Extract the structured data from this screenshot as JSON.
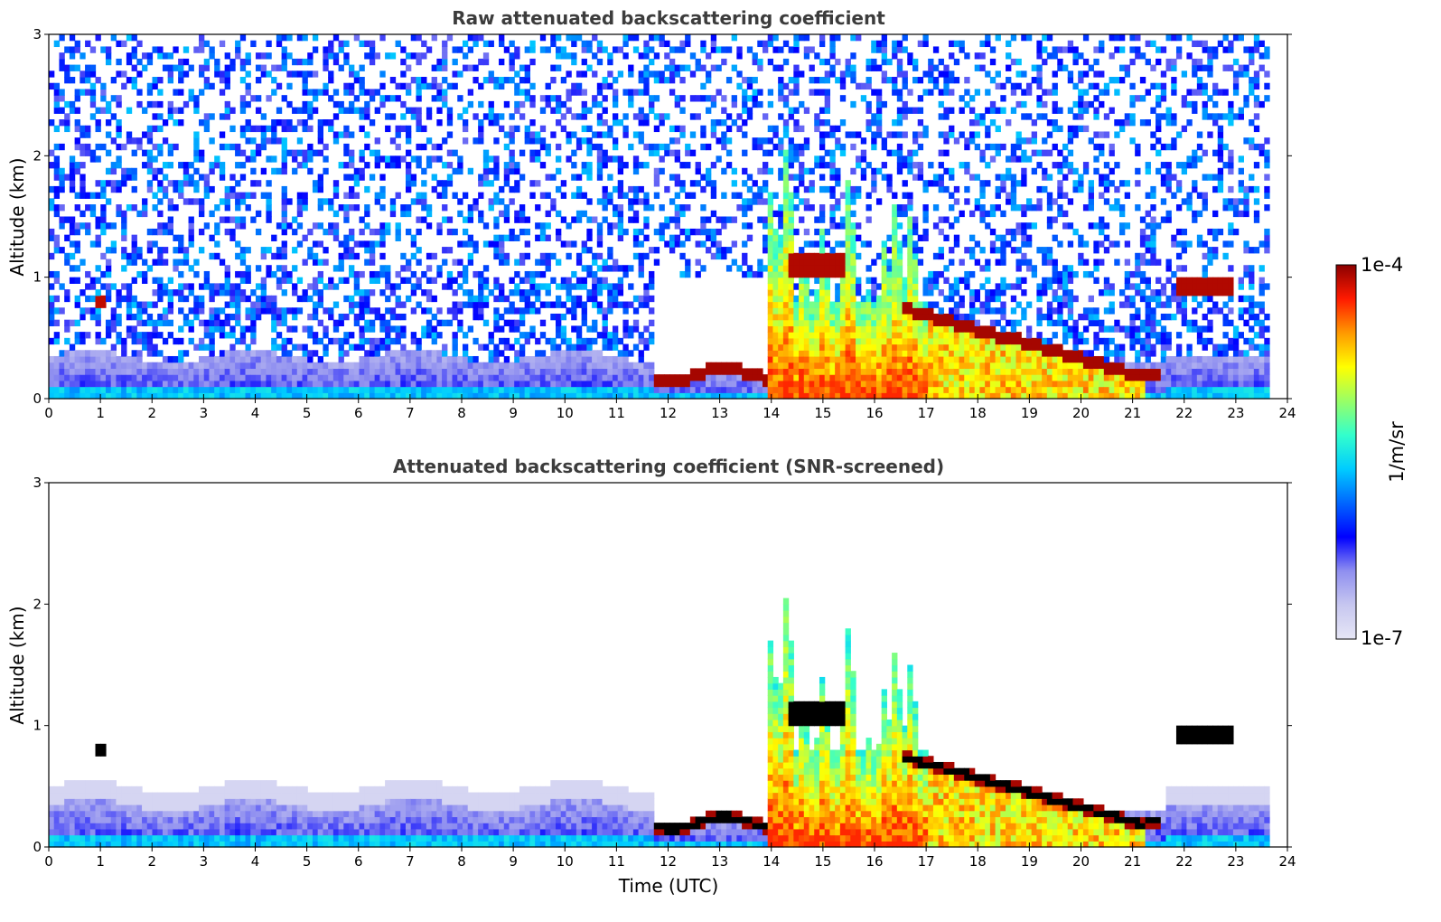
{
  "chart_data": [
    {
      "type": "heatmap",
      "title": "Raw attenuated backscattering coefficient",
      "xlabel": "",
      "ylabel": "Altitude (km)",
      "xlim": [
        0,
        24
      ],
      "ylim": [
        0,
        3
      ],
      "x_ticks": [
        "0",
        "1",
        "2",
        "3",
        "4",
        "5",
        "6",
        "7",
        "8",
        "9",
        "10",
        "11",
        "12",
        "13",
        "14",
        "15",
        "16",
        "17",
        "18",
        "19",
        "20",
        "21",
        "22",
        "23",
        "24"
      ],
      "y_ticks": [
        "0",
        "1",
        "2",
        "3"
      ],
      "data_extent_hours": [
        0,
        23.65
      ],
      "features": [
        {
          "feature": "stratiform cloud base layer",
          "time": [
            11.75,
            21.5
          ],
          "altitude_km": [
            0.15,
            0.3
          ]
        },
        {
          "feature": "elevated cloud layer",
          "time": [
            14.3,
            15.4
          ],
          "altitude_km": [
            1.0,
            1.2
          ]
        },
        {
          "feature": "descending cloud layer",
          "time": [
            16.5,
            21.2
          ],
          "altitude_km": [
            0.2,
            0.75
          ]
        },
        {
          "feature": "convective plumes",
          "time": [
            13.9,
            17.0
          ],
          "altitude_km": [
            0.0,
            2.2
          ]
        },
        {
          "feature": "isolated cloud",
          "time": [
            21.8,
            22.9
          ],
          "altitude_km": [
            0.85,
            1.0
          ]
        },
        {
          "feature": "small cloud",
          "time": [
            0.9,
            1.1
          ],
          "altitude_km": [
            0.75,
            0.85
          ]
        }
      ]
    },
    {
      "type": "heatmap",
      "title": "Attenuated backscattering coefficient (SNR-screened)",
      "xlabel": "Time (UTC)",
      "ylabel": "Altitude (km)",
      "xlim": [
        0,
        24
      ],
      "ylim": [
        0,
        3
      ],
      "x_ticks": [
        "0",
        "1",
        "2",
        "3",
        "4",
        "5",
        "6",
        "7",
        "8",
        "9",
        "10",
        "11",
        "12",
        "13",
        "14",
        "15",
        "16",
        "17",
        "18",
        "19",
        "20",
        "21",
        "22",
        "23",
        "24"
      ],
      "y_ticks": [
        "0",
        "1",
        "2",
        "3"
      ],
      "data_extent_hours": [
        0,
        23.65
      ]
    }
  ],
  "colorbar": {
    "label": "1/m/sr",
    "max_label": "1e-4",
    "min_label": "1e-7",
    "scale": "log",
    "colormap": [
      "#e6e6f5",
      "#c7c7f0",
      "#8f8ff0",
      "#0000ff",
      "#0066ff",
      "#00ccff",
      "#33ffcc",
      "#99ff66",
      "#ffff00",
      "#ff9900",
      "#ff1a00",
      "#8b0000"
    ]
  }
}
